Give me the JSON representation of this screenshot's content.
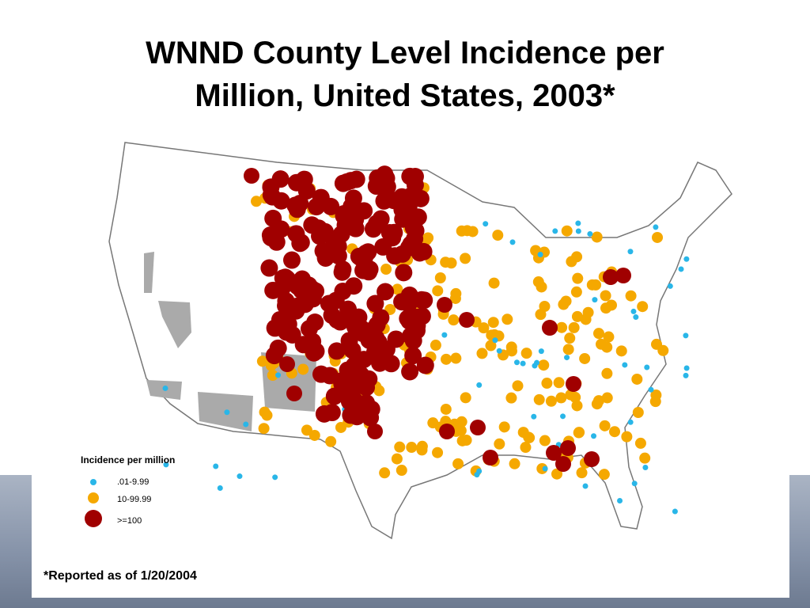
{
  "title_lines": [
    "WNND County Level Incidence per",
    "Million, United States, 2003*"
  ],
  "legend": {
    "title": "Incidence per million",
    "items": [
      {
        "label": ".01-9.99"
      },
      {
        "label": "10-99.99"
      },
      {
        "label": ">=100"
      }
    ]
  },
  "footnote": "*Reported as of 1/20/2004"
}
